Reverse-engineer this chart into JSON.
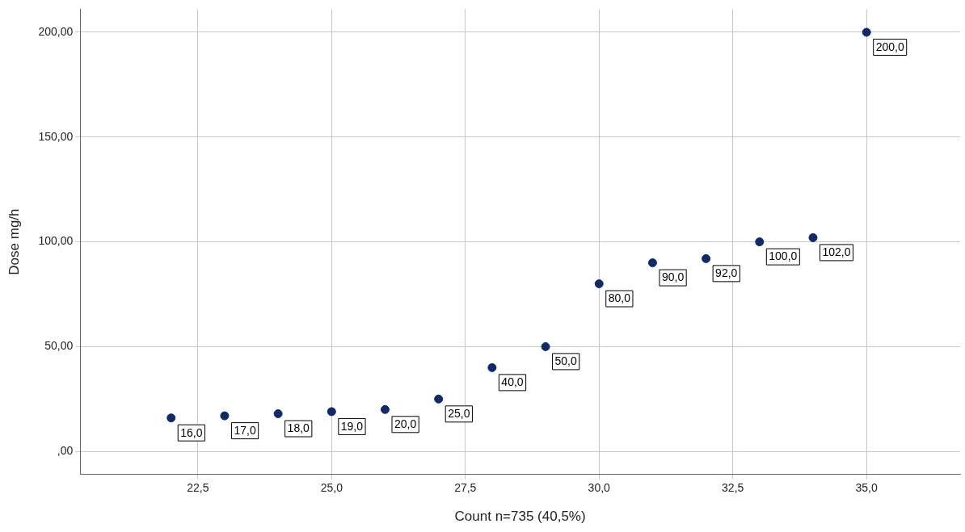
{
  "chart_data": {
    "type": "scatter",
    "xlabel": "Count n=735 (40,5%)",
    "ylabel": "Dose mg/h",
    "x": [
      22,
      23,
      24,
      25,
      26,
      27,
      28,
      29,
      30,
      31,
      32,
      33,
      34,
      35
    ],
    "series": [
      {
        "color": "#0f2a6b",
        "values": [
          16,
          17,
          18,
          19,
          20,
          25,
          40,
          50,
          80,
          90,
          92,
          100,
          102,
          200
        ],
        "value_labels": [
          "16,0",
          "17,0",
          "18,0",
          "19,0",
          "20,0",
          "25,0",
          "40,0",
          "50,0",
          "80,0",
          "90,0",
          "92,0",
          "100,0",
          "102,0",
          "200,0"
        ]
      }
    ],
    "xlim": [
      20.3,
      36.75
    ],
    "ylim": [
      -11,
      211
    ],
    "xticks": [
      {
        "value": 22.5,
        "label": "22,5"
      },
      {
        "value": 25,
        "label": "25,0"
      },
      {
        "value": 27.5,
        "label": "27,5"
      },
      {
        "value": 30,
        "label": "30,0"
      },
      {
        "value": 32.5,
        "label": "32,5"
      },
      {
        "value": 35,
        "label": "35,0"
      }
    ],
    "yticks": [
      {
        "value": 0,
        "label": ",00"
      },
      {
        "value": 50,
        "label": "50,00"
      },
      {
        "value": 100,
        "label": "100,00"
      },
      {
        "value": 150,
        "label": "150,00"
      },
      {
        "value": 200,
        "label": "200,00"
      }
    ],
    "grid": true,
    "legend": false,
    "marker": "circle"
  }
}
